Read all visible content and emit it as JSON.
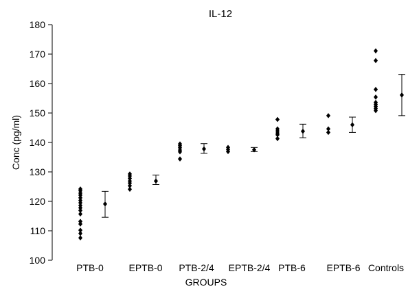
{
  "chart_data": {
    "type": "scatter",
    "title": "IL-12",
    "xlabel": "GROUPS",
    "ylabel": "Conc (pg/ml)",
    "ylim": [
      100,
      180
    ],
    "yticks": [
      100,
      110,
      120,
      130,
      140,
      150,
      160,
      170,
      180
    ],
    "grid": false,
    "legend": "none",
    "categories": [
      "PTB-0",
      "EPTB-0",
      "PTB-2/4",
      "EPTB-2/4",
      "PTB-6",
      "EPTB-6",
      "Controls"
    ],
    "groups": [
      {
        "label": "PTB-0",
        "points": [
          124.2,
          123.6,
          122.8,
          122.1,
          121.2,
          120.3,
          119.5,
          118.6,
          117.8,
          116.9,
          115.7,
          113.2,
          112.3,
          110.2,
          109.1,
          107.6
        ],
        "mean": 119.1,
        "err_low": 114.6,
        "err_high": 123.4
      },
      {
        "label": "EPTB-0",
        "points": [
          129.3,
          128.6,
          127.8,
          126.9,
          126.2,
          125.3,
          124.1
        ],
        "mean": 126.9,
        "err_low": 125.7,
        "err_high": 128.9
      },
      {
        "label": "PTB-2/4",
        "points": [
          139.5,
          138.9,
          138.2,
          137.4,
          136.8,
          134.4
        ],
        "mean": 137.8,
        "err_low": 136.3,
        "err_high": 139.6
      },
      {
        "label": "EPTB-2/4",
        "points": [
          138.3,
          137.6,
          136.9
        ],
        "mean": 137.5,
        "err_low": 136.9,
        "err_high": 138.3
      },
      {
        "label": "PTB-6",
        "points": [
          147.8,
          144.6,
          143.9,
          143.2,
          142.6,
          141.3
        ],
        "mean": 143.8,
        "err_low": 141.6,
        "err_high": 146.2
      },
      {
        "label": "EPTB-6",
        "points": [
          149.1,
          144.6,
          143.4
        ],
        "mean": 146.0,
        "err_low": 143.4,
        "err_high": 148.6
      },
      {
        "label": "Controls",
        "points": [
          171.1,
          167.8,
          158.0,
          155.4,
          153.6,
          152.9,
          152.2,
          151.5,
          150.8
        ],
        "mean": 156.1,
        "err_low": 149.1,
        "err_high": 163.1
      }
    ],
    "colors": {
      "marker": "#000000",
      "axis": "#000000",
      "background": "#ffffff"
    }
  }
}
